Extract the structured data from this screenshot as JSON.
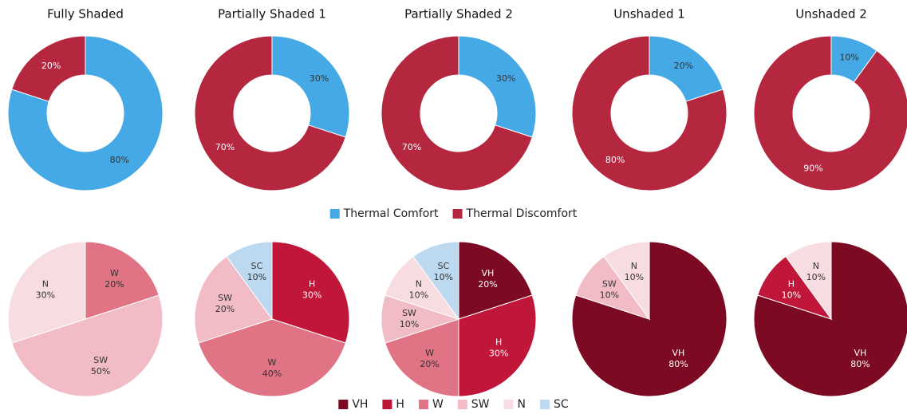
{
  "chart_data": [
    {
      "type": "donut",
      "title": "Fully Shaded",
      "categories": [
        "Thermal Comfort",
        "Thermal Discomfort"
      ],
      "values": [
        80,
        20
      ],
      "value_labels": [
        "80%",
        "20%"
      ],
      "colors": [
        "#45a9e6",
        "#b5263f"
      ]
    },
    {
      "type": "donut",
      "title": "Partially Shaded 1",
      "categories": [
        "Thermal Comfort",
        "Thermal Discomfort"
      ],
      "values": [
        30,
        70
      ],
      "value_labels": [
        "30%",
        "70%"
      ],
      "colors": [
        "#45a9e6",
        "#b5263f"
      ]
    },
    {
      "type": "donut",
      "title": "Partially Shaded 2",
      "categories": [
        "Thermal Comfort",
        "Thermal Discomfort"
      ],
      "values": [
        30,
        70
      ],
      "value_labels": [
        "30%",
        "70%"
      ],
      "colors": [
        "#45a9e6",
        "#b5263f"
      ]
    },
    {
      "type": "donut",
      "title": "Unshaded 1",
      "categories": [
        "Thermal Comfort",
        "Thermal Discomfort"
      ],
      "values": [
        20,
        80
      ],
      "value_labels": [
        "20%",
        "80%"
      ],
      "colors": [
        "#45a9e6",
        "#b5263f"
      ]
    },
    {
      "type": "donut",
      "title": "Unshaded 2",
      "categories": [
        "Thermal Comfort",
        "Thermal Discomfort"
      ],
      "values": [
        10,
        90
      ],
      "value_labels": [
        "10%",
        "90%"
      ],
      "colors": [
        "#45a9e6",
        "#b5263f"
      ]
    },
    {
      "type": "pie",
      "categories": [
        "W",
        "SW",
        "N"
      ],
      "values": [
        20,
        50,
        30
      ],
      "value_labels": [
        "20%",
        "50%",
        "30%"
      ],
      "colors": [
        "#e07384",
        "#f2bcc6",
        "#f7dde2"
      ]
    },
    {
      "type": "pie",
      "categories": [
        "H",
        "W",
        "SW",
        "SC"
      ],
      "values": [
        30,
        40,
        20,
        10
      ],
      "value_labels": [
        "30%",
        "40%",
        "20%",
        "10%"
      ],
      "colors": [
        "#c0163a",
        "#e07384",
        "#f2bcc6",
        "#bdd9f0"
      ]
    },
    {
      "type": "pie",
      "categories": [
        "VH",
        "H",
        "W",
        "SW",
        "N",
        "SC"
      ],
      "values": [
        20,
        30,
        20,
        10,
        10,
        10
      ],
      "value_labels": [
        "20%",
        "30%",
        "20%",
        "10%",
        "10%",
        "10%"
      ],
      "colors": [
        "#7b0a22",
        "#c0163a",
        "#e07384",
        "#f2bcc6",
        "#f7dde2",
        "#bdd9f0"
      ]
    },
    {
      "type": "pie",
      "categories": [
        "VH",
        "SW",
        "N"
      ],
      "values": [
        80,
        10,
        10
      ],
      "value_labels": [
        "80%",
        "10%",
        "10%"
      ],
      "colors": [
        "#7b0a22",
        "#f2bcc6",
        "#f7dde2"
      ]
    },
    {
      "type": "pie",
      "categories": [
        "VH",
        "H",
        "N"
      ],
      "values": [
        80,
        10,
        10
      ],
      "value_labels": [
        "80%",
        "10%",
        "10%"
      ],
      "colors": [
        "#7b0a22",
        "#c0163a",
        "#f7dde2"
      ]
    }
  ],
  "pie_legend": {
    "labels": [
      "VH",
      "H",
      "W",
      "SW",
      "N",
      "SC"
    ],
    "colors": [
      "#7b0a22",
      "#c0163a",
      "#e07384",
      "#f2bcc6",
      "#f7dde2",
      "#bdd9f0"
    ]
  }
}
